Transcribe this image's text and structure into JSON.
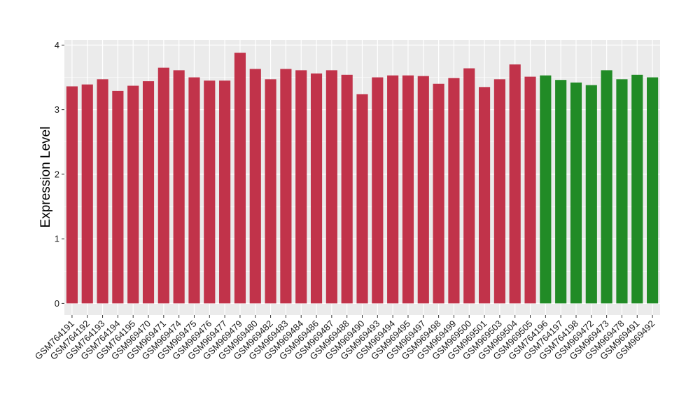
{
  "chart_data": {
    "type": "bar",
    "title": "",
    "xlabel": "",
    "ylabel": "Expression Level",
    "ylim": [
      -0.18,
      4.08
    ],
    "yticks": [
      0,
      1,
      2,
      3,
      4
    ],
    "grid": true,
    "legend": "none",
    "colors": {
      "group1": "#c1334a",
      "group2": "#218b26",
      "panel": "#ebebeb",
      "grid": "#ffffff"
    },
    "categories": [
      "GSM764191",
      "GSM764192",
      "GSM764193",
      "GSM764194",
      "GSM764195",
      "GSM969470",
      "GSM969471",
      "GSM969474",
      "GSM969475",
      "GSM969476",
      "GSM969477",
      "GSM969479",
      "GSM969480",
      "GSM969482",
      "GSM969483",
      "GSM969484",
      "GSM969486",
      "GSM969487",
      "GSM969488",
      "GSM969490",
      "GSM969493",
      "GSM969494",
      "GSM969495",
      "GSM969497",
      "GSM969498",
      "GSM969499",
      "GSM969500",
      "GSM969501",
      "GSM969503",
      "GSM969504",
      "GSM969505",
      "GSM764196",
      "GSM764197",
      "GSM764198",
      "GSM969472",
      "GSM969473",
      "GSM969478",
      "GSM969491",
      "GSM969492"
    ],
    "values": [
      3.36,
      3.39,
      3.47,
      3.29,
      3.37,
      3.44,
      3.65,
      3.61,
      3.5,
      3.45,
      3.45,
      3.88,
      3.63,
      3.47,
      3.63,
      3.61,
      3.56,
      3.61,
      3.54,
      3.24,
      3.5,
      3.53,
      3.53,
      3.52,
      3.4,
      3.49,
      3.64,
      3.35,
      3.47,
      3.7,
      3.51,
      3.53,
      3.46,
      3.42,
      3.38,
      3.61,
      3.47,
      3.54,
      3.5
    ],
    "groups": [
      1,
      1,
      1,
      1,
      1,
      1,
      1,
      1,
      1,
      1,
      1,
      1,
      1,
      1,
      1,
      1,
      1,
      1,
      1,
      1,
      1,
      1,
      1,
      1,
      1,
      1,
      1,
      1,
      1,
      1,
      1,
      2,
      2,
      2,
      2,
      2,
      2,
      2,
      2
    ]
  }
}
